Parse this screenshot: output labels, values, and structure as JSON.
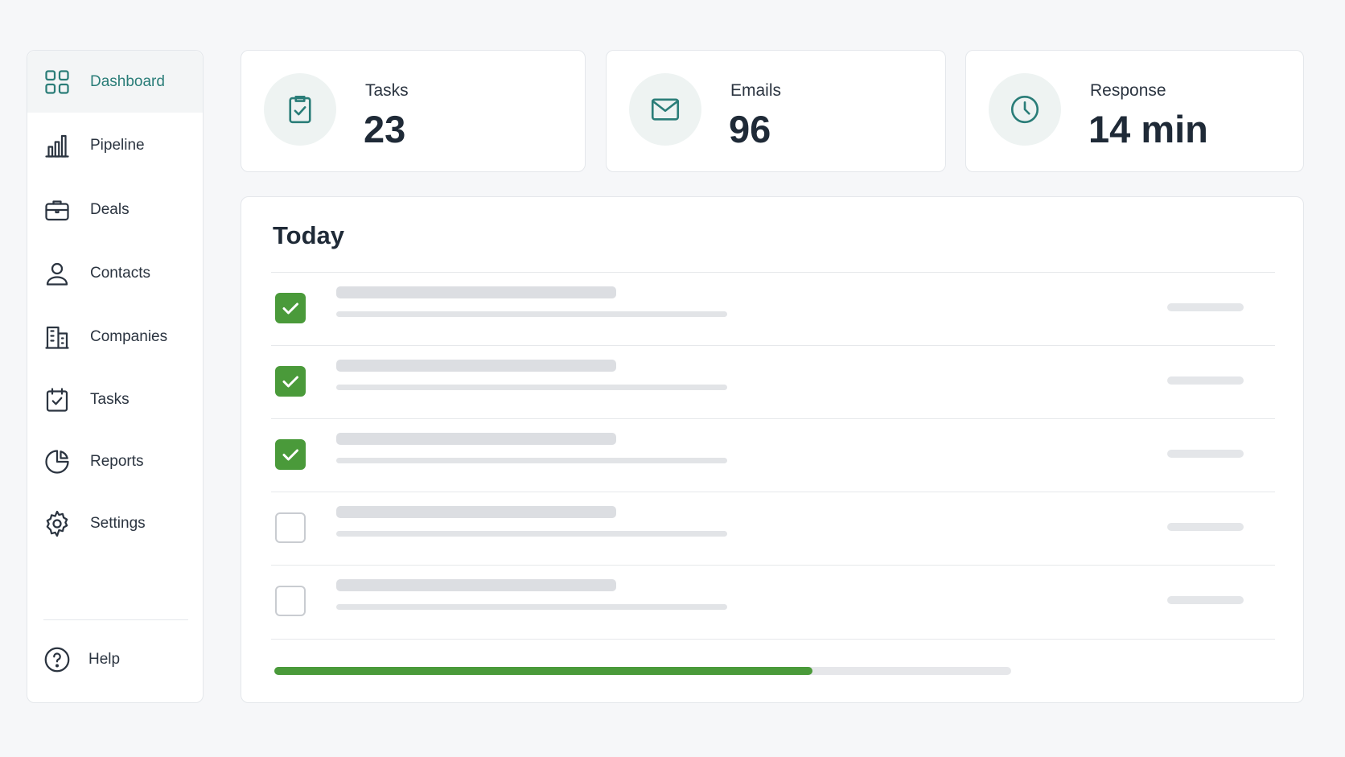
{
  "sidebar": {
    "items": [
      {
        "label": "Dashboard",
        "active": true
      },
      {
        "label": "Pipeline",
        "active": false
      },
      {
        "label": "Deals",
        "active": false
      },
      {
        "label": "Contacts",
        "active": false
      },
      {
        "label": "Companies",
        "active": false
      },
      {
        "label": "Tasks",
        "active": false
      },
      {
        "label": "Reports",
        "active": false
      },
      {
        "label": "Settings",
        "active": false
      }
    ],
    "help": "Help"
  },
  "stats": [
    {
      "label": "Tasks",
      "value": "23"
    },
    {
      "label": "Emails",
      "value": "96"
    },
    {
      "label": "Response",
      "value": "14 min"
    }
  ],
  "today": {
    "title": "Today",
    "rows": [
      {
        "checked": true
      },
      {
        "checked": true
      },
      {
        "checked": true
      },
      {
        "checked": false
      },
      {
        "checked": false
      }
    ],
    "progress_percent": 73
  }
}
